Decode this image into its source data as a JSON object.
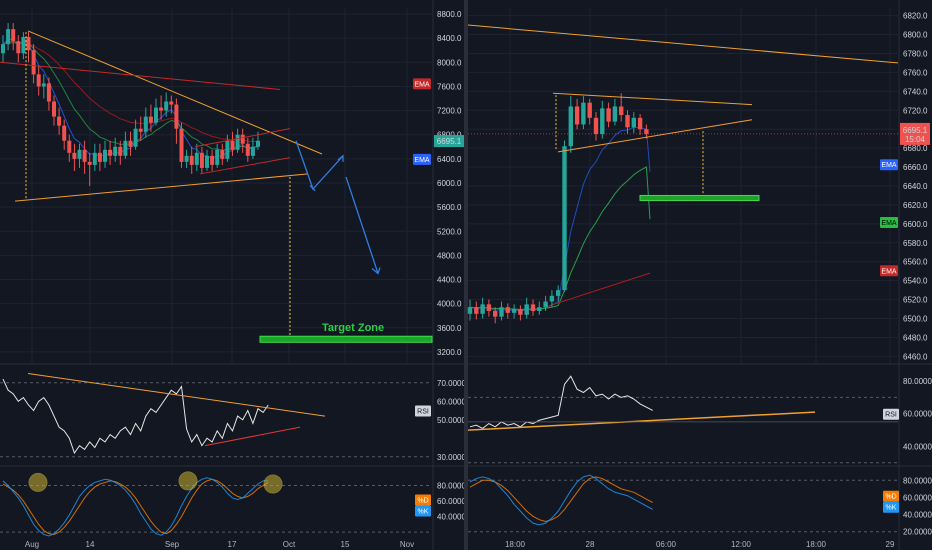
{
  "chart_data": [
    {
      "type": "candlestick",
      "panel": "left-price",
      "title": "",
      "x_ticks": [
        "Aug",
        "14",
        "Sep",
        "17",
        "Oct",
        "15",
        "Nov"
      ],
      "y_ticks": [
        "8800.0",
        "8400.0",
        "8000.0",
        "7600.0",
        "7200.0",
        "6800.0",
        "6400.0",
        "6000.0",
        "5600.0",
        "5200.0",
        "4800.0",
        "4400.0",
        "4000.0",
        "3600.0",
        "3200.0"
      ],
      "ylim": [
        3000,
        8900
      ],
      "last_price": "6695.1",
      "indicator_tags": [
        "EMA",
        "EMA"
      ],
      "annotation": "Target Zone",
      "target_zone": [
        3360,
        3460
      ],
      "candles": [
        {
          "o": 8150,
          "c": 8300,
          "h": 8450,
          "l": 8000
        },
        {
          "o": 8300,
          "c": 8550,
          "h": 8650,
          "l": 8200
        },
        {
          "o": 8550,
          "c": 8350,
          "h": 8650,
          "l": 8200
        },
        {
          "o": 8350,
          "c": 8150,
          "h": 8450,
          "l": 8000
        },
        {
          "o": 8150,
          "c": 8420,
          "h": 8500,
          "l": 8050
        },
        {
          "o": 8420,
          "c": 8200,
          "h": 8500,
          "l": 8000
        },
        {
          "o": 8200,
          "c": 7800,
          "h": 8300,
          "l": 7650
        },
        {
          "o": 7800,
          "c": 7600,
          "h": 7950,
          "l": 7450
        },
        {
          "o": 7600,
          "c": 7650,
          "h": 7800,
          "l": 7400
        },
        {
          "o": 7650,
          "c": 7350,
          "h": 7750,
          "l": 7200
        },
        {
          "o": 7350,
          "c": 7100,
          "h": 7450,
          "l": 6950
        },
        {
          "o": 7100,
          "c": 6950,
          "h": 7250,
          "l": 6800
        },
        {
          "o": 6950,
          "c": 6700,
          "h": 7050,
          "l": 6550
        },
        {
          "o": 6700,
          "c": 6500,
          "h": 6800,
          "l": 6350
        },
        {
          "o": 6500,
          "c": 6400,
          "h": 6650,
          "l": 6200
        },
        {
          "o": 6400,
          "c": 6550,
          "h": 6650,
          "l": 6250
        },
        {
          "o": 6550,
          "c": 6350,
          "h": 6700,
          "l": 6150
        },
        {
          "o": 6350,
          "c": 6300,
          "h": 6500,
          "l": 5950
        },
        {
          "o": 6300,
          "c": 6500,
          "h": 6650,
          "l": 6200
        },
        {
          "o": 6500,
          "c": 6350,
          "h": 6650,
          "l": 6200
        },
        {
          "o": 6350,
          "c": 6550,
          "h": 6700,
          "l": 6250
        },
        {
          "o": 6550,
          "c": 6450,
          "h": 6700,
          "l": 6300
        },
        {
          "o": 6450,
          "c": 6600,
          "h": 6750,
          "l": 6350
        },
        {
          "o": 6600,
          "c": 6450,
          "h": 6700,
          "l": 6300
        },
        {
          "o": 6450,
          "c": 6700,
          "h": 6850,
          "l": 6400
        },
        {
          "o": 6700,
          "c": 6600,
          "h": 6850,
          "l": 6450
        },
        {
          "o": 6600,
          "c": 6900,
          "h": 7050,
          "l": 6550
        },
        {
          "o": 6900,
          "c": 6850,
          "h": 7100,
          "l": 6700
        },
        {
          "o": 6850,
          "c": 7100,
          "h": 7250,
          "l": 6750
        },
        {
          "o": 7100,
          "c": 7000,
          "h": 7300,
          "l": 6850
        },
        {
          "o": 7000,
          "c": 7250,
          "h": 7400,
          "l": 6950
        },
        {
          "o": 7250,
          "c": 7200,
          "h": 7450,
          "l": 7050
        },
        {
          "o": 7200,
          "c": 7350,
          "h": 7500,
          "l": 7100
        },
        {
          "o": 7350,
          "c": 7300,
          "h": 7450,
          "l": 7150
        },
        {
          "o": 7300,
          "c": 6900,
          "h": 7400,
          "l": 6650
        },
        {
          "o": 6900,
          "c": 6350,
          "h": 7000,
          "l": 6250
        },
        {
          "o": 6350,
          "c": 6450,
          "h": 6550,
          "l": 6250
        },
        {
          "o": 6450,
          "c": 6300,
          "h": 6600,
          "l": 6150
        },
        {
          "o": 6300,
          "c": 6500,
          "h": 6650,
          "l": 6200
        },
        {
          "o": 6500,
          "c": 6250,
          "h": 6600,
          "l": 6150
        },
        {
          "o": 6250,
          "c": 6450,
          "h": 6550,
          "l": 6200
        },
        {
          "o": 6450,
          "c": 6300,
          "h": 6550,
          "l": 6200
        },
        {
          "o": 6300,
          "c": 6550,
          "h": 6650,
          "l": 6250
        },
        {
          "o": 6550,
          "c": 6400,
          "h": 6650,
          "l": 6300
        },
        {
          "o": 6400,
          "c": 6700,
          "h": 6800,
          "l": 6350
        },
        {
          "o": 6700,
          "c": 6550,
          "h": 6850,
          "l": 6450
        },
        {
          "o": 6550,
          "c": 6800,
          "h": 6900,
          "l": 6500
        },
        {
          "o": 6800,
          "c": 6650,
          "h": 6900,
          "l": 6500
        },
        {
          "o": 6650,
          "c": 6450,
          "h": 6750,
          "l": 6350
        },
        {
          "o": 6450,
          "c": 6600,
          "h": 6750,
          "l": 6400
        },
        {
          "o": 6600,
          "c": 6700,
          "h": 6850,
          "l": 6550
        }
      ]
    },
    {
      "type": "candlestick",
      "panel": "right-price",
      "title": "",
      "x_ticks": [
        "18:00",
        "28",
        "06:00",
        "12:00",
        "18:00",
        "29"
      ],
      "y_ticks": [
        "6820.0",
        "6800.0",
        "6780.0",
        "6760.0",
        "6740.0",
        "6720.0",
        "6700.0",
        "6680.0",
        "6660.0",
        "6640.0",
        "6620.0",
        "6600.0",
        "6580.0",
        "6560.0",
        "6540.0",
        "6520.0",
        "6500.0",
        "6480.0",
        "6460.0"
      ],
      "ylim": [
        6452,
        6828
      ],
      "last_price": "6695.1",
      "countdown": "15:04",
      "indicator_tags": [
        "EMA",
        "EMA",
        "EMA"
      ],
      "candles": [
        {
          "o": 6505,
          "c": 6512,
          "h": 6520,
          "l": 6498
        },
        {
          "o": 6512,
          "c": 6505,
          "h": 6518,
          "l": 6499
        },
        {
          "o": 6505,
          "c": 6515,
          "h": 6522,
          "l": 6500
        },
        {
          "o": 6515,
          "c": 6508,
          "h": 6520,
          "l": 6502
        },
        {
          "o": 6508,
          "c": 6502,
          "h": 6512,
          "l": 6495
        },
        {
          "o": 6502,
          "c": 6512,
          "h": 6518,
          "l": 6498
        },
        {
          "o": 6512,
          "c": 6506,
          "h": 6516,
          "l": 6500
        },
        {
          "o": 6506,
          "c": 6510,
          "h": 6515,
          "l": 6500
        },
        {
          "o": 6510,
          "c": 6504,
          "h": 6514,
          "l": 6498
        },
        {
          "o": 6504,
          "c": 6515,
          "h": 6522,
          "l": 6500
        },
        {
          "o": 6515,
          "c": 6508,
          "h": 6520,
          "l": 6503
        },
        {
          "o": 6508,
          "c": 6512,
          "h": 6518,
          "l": 6504
        },
        {
          "o": 6512,
          "c": 6518,
          "h": 6524,
          "l": 6508
        },
        {
          "o": 6518,
          "c": 6524,
          "h": 6530,
          "l": 6512
        },
        {
          "o": 6524,
          "c": 6530,
          "h": 6535,
          "l": 6518
        },
        {
          "o": 6530,
          "c": 6682,
          "h": 6688,
          "l": 6528
        },
        {
          "o": 6682,
          "c": 6724,
          "h": 6735,
          "l": 6675
        },
        {
          "o": 6724,
          "c": 6705,
          "h": 6732,
          "l": 6700
        },
        {
          "o": 6705,
          "c": 6728,
          "h": 6735,
          "l": 6700
        },
        {
          "o": 6728,
          "c": 6712,
          "h": 6732,
          "l": 6705
        },
        {
          "o": 6712,
          "c": 6695,
          "h": 6718,
          "l": 6688
        },
        {
          "o": 6695,
          "c": 6722,
          "h": 6730,
          "l": 6690
        },
        {
          "o": 6722,
          "c": 6708,
          "h": 6728,
          "l": 6702
        },
        {
          "o": 6708,
          "c": 6724,
          "h": 6732,
          "l": 6704
        },
        {
          "o": 6724,
          "c": 6715,
          "h": 6738,
          "l": 6708
        },
        {
          "o": 6715,
          "c": 6702,
          "h": 6720,
          "l": 6695
        },
        {
          "o": 6702,
          "c": 6712,
          "h": 6718,
          "l": 6696
        },
        {
          "o": 6712,
          "c": 6700,
          "h": 6716,
          "l": 6694
        },
        {
          "o": 6700,
          "c": 6695,
          "h": 6705,
          "l": 6690
        }
      ]
    },
    {
      "type": "line",
      "panel": "left-rsi",
      "label": "RSI",
      "y_ticks": [
        "70.0000",
        "60.0000",
        "50.0000",
        "30.0000"
      ],
      "ylim": [
        25,
        78
      ],
      "values": [
        72,
        66,
        64,
        60,
        62,
        58,
        55,
        60,
        62,
        58,
        52,
        46,
        44,
        40,
        32,
        36,
        34,
        38,
        35,
        40,
        38,
        42,
        40,
        44,
        46,
        42,
        48,
        44,
        52,
        56,
        54,
        58,
        62,
        66,
        64,
        68,
        45,
        38,
        42,
        36,
        40,
        38,
        44,
        40,
        48,
        44,
        52,
        50,
        55,
        48,
        56,
        54,
        58
      ]
    },
    {
      "type": "line",
      "panel": "right-rsi",
      "label": "RSI",
      "y_ticks": [
        "80.0000",
        "60.0000",
        "40.0000"
      ],
      "ylim": [
        28,
        88
      ],
      "values": [
        52,
        53,
        51,
        54,
        52,
        55,
        53,
        54,
        52,
        55,
        54,
        56,
        57,
        58,
        59,
        78,
        83,
        75,
        73,
        76,
        71,
        72,
        69,
        72,
        70,
        71,
        69,
        66,
        64,
        62
      ]
    },
    {
      "type": "line",
      "panel": "left-stoch",
      "legend": [
        "%D",
        "%K"
      ],
      "y_ticks": [
        "80.0000",
        "60.0000",
        "40.0000"
      ],
      "ylim": [
        15,
        100
      ],
      "series": [
        {
          "name": "%D",
          "values": [
            82,
            78,
            74,
            68,
            60,
            50,
            40,
            30,
            22,
            18,
            17,
            20,
            26,
            34,
            44,
            54,
            64,
            72,
            78,
            82,
            84,
            86,
            85,
            82,
            78,
            72,
            64,
            54,
            44,
            34,
            26,
            20,
            18,
            22,
            30,
            40,
            52,
            64,
            74,
            82,
            86,
            88,
            86,
            82,
            76,
            70,
            66,
            64,
            66,
            70,
            76,
            80,
            84
          ]
        },
        {
          "name": "%K",
          "values": [
            86,
            80,
            72,
            64,
            54,
            42,
            30,
            22,
            17,
            15,
            18,
            24,
            32,
            42,
            54,
            66,
            74,
            80,
            84,
            86,
            88,
            87,
            84,
            80,
            74,
            66,
            56,
            44,
            34,
            24,
            18,
            16,
            20,
            28,
            40,
            54,
            66,
            76,
            84,
            88,
            90,
            88,
            84,
            78,
            70,
            64,
            62,
            64,
            70,
            76,
            82,
            86,
            86
          ]
        }
      ]
    },
    {
      "type": "line",
      "panel": "right-stoch",
      "legend": [
        "%D",
        "%K"
      ],
      "y_ticks": [
        "80.0000",
        "60.0000",
        "40.0000",
        "20.0000"
      ],
      "ylim": [
        15,
        92
      ],
      "series": [
        {
          "name": "%D",
          "values": [
            72,
            76,
            80,
            80,
            78,
            74,
            68,
            60,
            52,
            44,
            38,
            34,
            32,
            34,
            38,
            46,
            56,
            66,
            76,
            82,
            84,
            82,
            78,
            74,
            70,
            68,
            66,
            62,
            58,
            54
          ]
        },
        {
          "name": "%K",
          "values": [
            78,
            82,
            84,
            82,
            78,
            70,
            62,
            52,
            44,
            36,
            30,
            28,
            30,
            36,
            44,
            56,
            68,
            78,
            84,
            86,
            82,
            76,
            70,
            66,
            64,
            62,
            58,
            54,
            50,
            46
          ]
        }
      ]
    }
  ]
}
